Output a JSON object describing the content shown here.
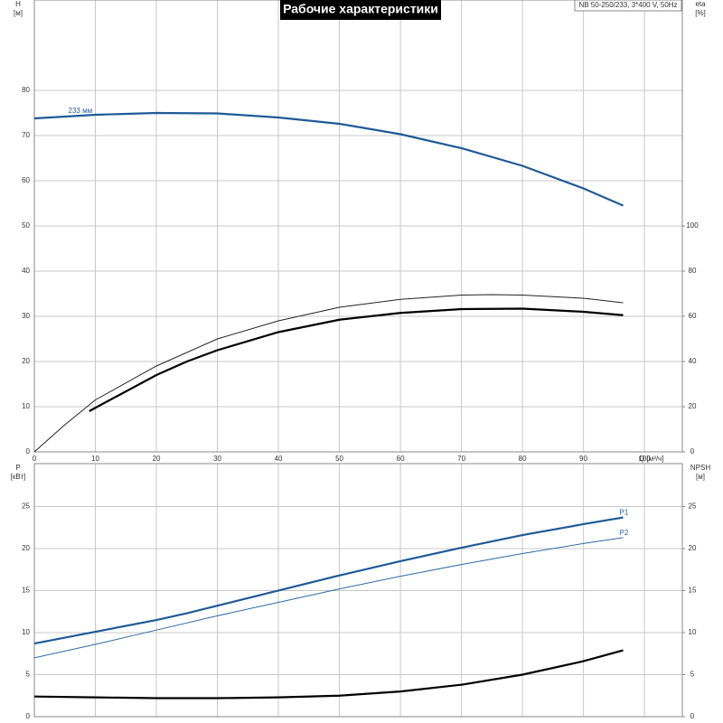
{
  "chart_data": [
    {
      "type": "line",
      "title": "Рабочие характеристики",
      "subtitle": "NB 50-250/233, 3*400 V, 50Hz",
      "ylabel": "H",
      "yunit": "[м]",
      "y2label": "eta",
      "y2unit": "[%]",
      "xlabel": "Q [м³/ч]",
      "xlim": [
        0,
        106.2
      ],
      "xticks": [
        0,
        10,
        20,
        30,
        40,
        50,
        60,
        70,
        80,
        90,
        100
      ],
      "ylim": [
        0,
        100
      ],
      "yticks": [
        0,
        10,
        20,
        30,
        40,
        50,
        60,
        70,
        80
      ],
      "y2lim": [
        0,
        200
      ],
      "y2ticks": [
        0,
        20,
        40,
        60,
        80,
        100
      ],
      "grid": true,
      "series": [
        {
          "name": "233 мм",
          "color": "#1f5a96",
          "weight": "bold",
          "label_at": "start",
          "x": [
            0,
            10,
            20,
            30,
            40,
            50,
            60,
            70,
            80,
            90,
            96.5
          ],
          "values": [
            73.8,
            74.6,
            75,
            74.9,
            74,
            72.6,
            70.3,
            67.2,
            63.3,
            58.3,
            54.5
          ]
        },
        {
          "color": "#222222",
          "weight": "normal",
          "axis": "y2",
          "x": [
            0,
            5,
            10,
            20,
            30,
            40,
            50,
            60,
            70,
            75,
            80,
            90,
            96.5
          ],
          "values": [
            0,
            12,
            23,
            38,
            50,
            58,
            64,
            67.5,
            69.4,
            69.6,
            69.4,
            68,
            66
          ]
        },
        {
          "color": "#000000",
          "weight": "bold",
          "axis": "y2",
          "x": [
            9,
            10,
            20,
            25,
            30,
            40,
            50,
            60,
            70,
            80,
            90,
            96.5
          ],
          "values": [
            18,
            19.5,
            34,
            40,
            45,
            53,
            58.5,
            61.5,
            63.2,
            63.4,
            62,
            60.5
          ]
        }
      ]
    },
    {
      "type": "line",
      "ylabel": "P",
      "yunit": "[кВт]",
      "y2label": "NPSH",
      "y2unit": "[м]",
      "xlim": [
        0,
        106.2
      ],
      "ylim": [
        0,
        30.1
      ],
      "yticks": [
        0,
        5,
        10,
        15,
        20,
        25
      ],
      "y2lim": [
        0,
        30.1
      ],
      "y2ticks": [
        0,
        5,
        10,
        15,
        20,
        25
      ],
      "grid": true,
      "series": [
        {
          "name": "P1",
          "color": "#1f5a96",
          "weight": "bold",
          "label_at": "end",
          "x": [
            0,
            10,
            20,
            25,
            30,
            40,
            50,
            60,
            70,
            80,
            90,
            96.5
          ],
          "values": [
            8.7,
            10.1,
            11.5,
            12.3,
            13.2,
            15,
            16.8,
            18.5,
            20.1,
            21.6,
            22.9,
            23.7
          ]
        },
        {
          "name": "P2",
          "color": "#2f6aa6",
          "weight": "normal",
          "label_at": "end",
          "x": [
            0,
            10,
            20,
            30,
            40,
            50,
            60,
            70,
            80,
            90,
            96.5
          ],
          "values": [
            7,
            8.6,
            10.3,
            12,
            13.6,
            15.2,
            16.7,
            18.1,
            19.4,
            20.6,
            21.3
          ]
        },
        {
          "color": "#000000",
          "weight": "bold",
          "axis": "y2",
          "x": [
            0,
            10,
            20,
            30,
            40,
            50,
            60,
            70,
            80,
            90,
            96.5
          ],
          "values": [
            2.4,
            2.3,
            2.2,
            2.2,
            2.3,
            2.5,
            3,
            3.8,
            5,
            6.6,
            7.9
          ]
        }
      ]
    }
  ]
}
